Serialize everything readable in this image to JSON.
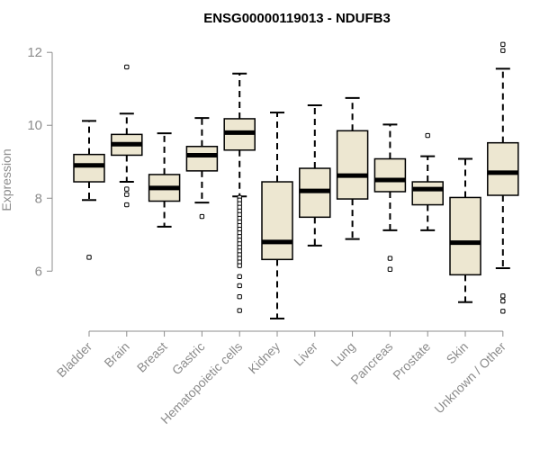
{
  "chart_data": {
    "type": "boxplot",
    "title": "ENSG00000119013 - NDUFB3",
    "xlabel": "",
    "ylabel": "Expression",
    "ylim": [
      4.6,
      12.4
    ],
    "yticks": [
      6,
      8,
      10,
      12
    ],
    "categories": [
      "Bladder",
      "Brain",
      "Breast",
      "Gastric",
      "Hematopoietic cells",
      "Kidney",
      "Liver",
      "Lung",
      "Pancreas",
      "Prostate",
      "Skin",
      "Unknown / Other"
    ],
    "boxes": [
      {
        "name": "Bladder",
        "whisker_low": 7.95,
        "q1": 8.45,
        "median": 8.9,
        "q3": 9.2,
        "whisker_high": 10.12,
        "outliers": [
          6.38
        ]
      },
      {
        "name": "Brain",
        "whisker_low": 8.45,
        "q1": 9.18,
        "median": 9.48,
        "q3": 9.75,
        "whisker_high": 10.32,
        "outliers": [
          11.6,
          8.25,
          8.1,
          7.82
        ]
      },
      {
        "name": "Breast",
        "whisker_low": 7.22,
        "q1": 7.92,
        "median": 8.28,
        "q3": 8.65,
        "whisker_high": 9.78,
        "outliers": []
      },
      {
        "name": "Gastric",
        "whisker_low": 7.88,
        "q1": 8.75,
        "median": 9.18,
        "q3": 9.42,
        "whisker_high": 10.2,
        "outliers": [
          7.5
        ]
      },
      {
        "name": "Hematopoietic cells",
        "whisker_low": 8.05,
        "q1": 9.32,
        "median": 9.8,
        "q3": 10.18,
        "whisker_high": 11.42,
        "outliers": [
          8.02,
          7.95,
          7.85,
          7.75,
          7.65,
          7.55,
          7.45,
          7.35,
          7.25,
          7.15,
          7.05,
          6.95,
          6.85,
          6.75,
          6.65,
          6.55,
          6.45,
          6.35,
          6.25,
          6.15,
          5.85,
          5.6,
          5.3,
          4.92
        ]
      },
      {
        "name": "Kidney",
        "whisker_low": 4.7,
        "q1": 6.32,
        "median": 6.8,
        "q3": 8.45,
        "whisker_high": 10.35,
        "outliers": []
      },
      {
        "name": "Liver",
        "whisker_low": 6.7,
        "q1": 7.48,
        "median": 8.2,
        "q3": 8.82,
        "whisker_high": 10.55,
        "outliers": []
      },
      {
        "name": "Lung",
        "whisker_low": 6.88,
        "q1": 7.98,
        "median": 8.62,
        "q3": 9.85,
        "whisker_high": 10.75,
        "outliers": []
      },
      {
        "name": "Pancreas",
        "whisker_low": 7.12,
        "q1": 8.18,
        "median": 8.5,
        "q3": 9.08,
        "whisker_high": 10.02,
        "outliers": [
          6.35,
          6.05
        ]
      },
      {
        "name": "Prostate",
        "whisker_low": 7.12,
        "q1": 7.82,
        "median": 8.25,
        "q3": 8.45,
        "whisker_high": 9.15,
        "outliers": [
          9.72
        ]
      },
      {
        "name": "Skin",
        "whisker_low": 5.15,
        "q1": 5.9,
        "median": 6.78,
        "q3": 8.02,
        "whisker_high": 9.08,
        "outliers": []
      },
      {
        "name": "Unknown / Other",
        "whisker_low": 6.08,
        "q1": 8.08,
        "median": 8.7,
        "q3": 9.52,
        "whisker_high": 11.55,
        "outliers": [
          12.22,
          12.05,
          5.32,
          5.18,
          4.9
        ]
      }
    ],
    "box_fill": "#ede7d1",
    "axis_color": "#8c8c8c",
    "grid": false
  }
}
